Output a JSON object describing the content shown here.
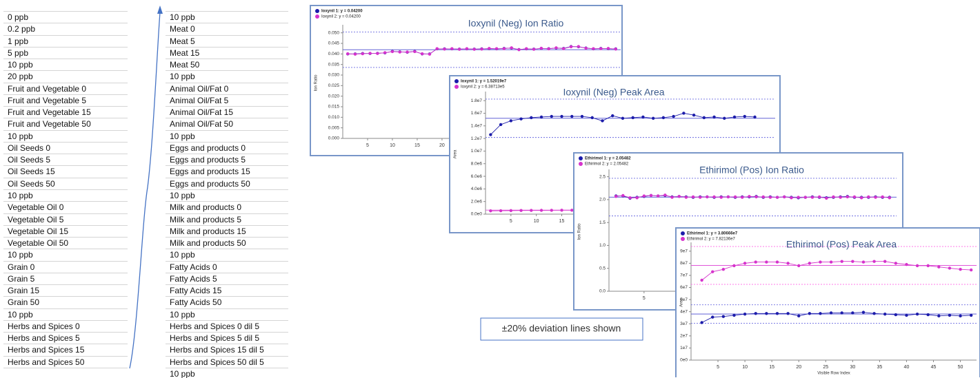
{
  "tables": [
    {
      "rows": [
        "0 ppb",
        "0.2 ppb",
        "1 ppb",
        "5 ppb",
        "10 ppb",
        "20 ppb",
        "Fruit and Vegetable 0",
        "Fruit and Vegetable 5",
        "Fruit and Vegetable 15",
        "Fruit and Vegetable 50",
        "10 ppb",
        "Oil Seeds 0",
        "Oil Seeds 5",
        "Oil Seeds 15",
        "Oil Seeds 50",
        "10 ppb",
        "Vegetable Oil 0",
        "Vegetable Oil 5",
        "Vegetable Oil 15",
        "Vegetable Oil 50",
        "10 ppb",
        "Grain 0",
        "Grain 5",
        "Grain 15",
        "Grain 50",
        "10 ppb",
        "Herbs and Spices 0",
        "Herbs and Spices 5",
        "Herbs and Spices 15",
        "Herbs and Spices 50"
      ]
    },
    {
      "rows": [
        "10 ppb",
        "Meat 0",
        "Meat 5",
        "Meat 15",
        "Meat 50",
        "10 ppb",
        "Animal Oil/Fat 0",
        "Animal Oil/Fat 5",
        "Animal Oil/Fat 15",
        "Animal Oil/Fat 50",
        "10 ppb",
        "Eggs and products 0",
        "Eggs and products 5",
        "Eggs and products 15",
        "Eggs and products 50",
        "10 ppb",
        "Milk and products 0",
        "Milk and products 5",
        "Milk and products 15",
        "Milk and products 50",
        "10 ppb",
        "Fatty Acids 0",
        "Fatty Acids 5",
        "Fatty Acids 15",
        "Fatty Acids 50",
        "10 ppb",
        "Herbs and Spices 0 dil 5",
        "Herbs and Spices 5 dil 5",
        "Herbs and Spices 15 dil 5",
        "Herbs and Spices 50 dil 5",
        "10 ppb"
      ]
    }
  ],
  "note": "±20% deviation lines shown",
  "chart_data": [
    {
      "type": "line",
      "title": "Ioxynil (Neg) Ion Ratio",
      "y_label": "Ion Ratio",
      "x": [
        1,
        2.5,
        4,
        5.5,
        7,
        8.5,
        10,
        11.5,
        13,
        14.5,
        16,
        17.5,
        19,
        20.5,
        22,
        23.5,
        25,
        26.5,
        28,
        29.5,
        31,
        32.5,
        34,
        35.5,
        37,
        38.5,
        40,
        41.5,
        43,
        44.5,
        46,
        47.5,
        49,
        50.5,
        52,
        53.5,
        55
      ],
      "xlim": [
        0,
        56
      ],
      "xticks": [
        5,
        10,
        15,
        20,
        25,
        30,
        35,
        40,
        45,
        50,
        55
      ],
      "ylim": [
        0,
        0.0525
      ],
      "yticks": [
        {
          "value": 0,
          "label": "0.000"
        },
        0.005,
        {
          "value": 0.01,
          "label": "0.010"
        },
        0.015,
        {
          "value": 0.02,
          "label": "0.020"
        },
        0.025,
        {
          "value": 0.03,
          "label": "0.030"
        },
        0.035,
        {
          "value": 0.04,
          "label": "0.040"
        },
        0.045,
        {
          "value": 0.05,
          "label": "0.050"
        }
      ],
      "hlines": [
        {
          "value": 0.042,
          "color": "#4a4ad0",
          "dashed": false
        },
        {
          "value": 0.0504,
          "color": "#6a6ae0",
          "dashed": true
        },
        {
          "value": 0.0336,
          "color": "#6a6ae0",
          "dashed": true
        }
      ],
      "series": [
        {
          "name": "Ioxynil 1: y = 0.04200",
          "color": "#1c1caa",
          "values": [
            0.04,
            0.04,
            0.0402,
            0.0402,
            0.0403,
            0.0405,
            0.0412,
            0.041,
            0.0408,
            0.0412,
            0.04,
            0.04,
            0.0424,
            0.0424,
            0.0424,
            0.0423,
            0.0424,
            0.0423,
            0.0424,
            0.0425,
            0.0424,
            0.0426,
            0.0428,
            0.0421,
            0.0424,
            0.0423,
            0.0426,
            0.0425,
            0.0428,
            0.0426,
            0.0435,
            0.0434,
            0.0428,
            0.0424,
            0.0426,
            0.0425,
            0.0424
          ]
        },
        {
          "name": "Ioxynil 2: y = 0.04200",
          "color": "#d633cc",
          "values": [
            0.0401,
            0.0399,
            0.0401,
            0.0403,
            0.0402,
            0.0406,
            0.0411,
            0.0409,
            0.0409,
            0.0411,
            0.0401,
            0.0399,
            0.0425,
            0.0423,
            0.0425,
            0.0422,
            0.0425,
            0.0422,
            0.0423,
            0.0426,
            0.0425,
            0.0425,
            0.0429,
            0.042,
            0.0425,
            0.0422,
            0.0427,
            0.0424,
            0.0429,
            0.0425,
            0.0434,
            0.0435,
            0.0427,
            0.0425,
            0.0425,
            0.0426,
            0.0423
          ]
        }
      ]
    },
    {
      "type": "line",
      "title": "Ioxynil (Neg) Peak Area",
      "y_label": "Area",
      "x": [
        1,
        3,
        5,
        7,
        9,
        11,
        13,
        15,
        17,
        19,
        21,
        23,
        25,
        27,
        29,
        31,
        33,
        35,
        37,
        39,
        41,
        43,
        45,
        47,
        49,
        51,
        53
      ],
      "xlim": [
        0,
        57
      ],
      "xticks": [
        5,
        10,
        15,
        20,
        25,
        30,
        35,
        40,
        45,
        50,
        55
      ],
      "ylim": [
        0,
        19000000
      ],
      "yticks": [
        {
          "value": 0,
          "label": "0.0e0"
        },
        {
          "value": 2000000,
          "label": "2.0e6"
        },
        {
          "value": 4000000,
          "label": "4.0e6"
        },
        {
          "value": 6000000,
          "label": "6.0e6"
        },
        {
          "value": 8000000,
          "label": "8.0e6"
        },
        {
          "value": 10000000,
          "label": "1.0e7"
        },
        {
          "value": 12000000,
          "label": "1.2e7"
        },
        {
          "value": 14000000,
          "label": "1.4e7"
        },
        {
          "value": 16000000,
          "label": "1.6e7"
        },
        {
          "value": 18000000,
          "label": "1.8e7"
        }
      ],
      "hlines": [
        {
          "value": 15201900,
          "color": "#4a4ad0",
          "dashed": false
        },
        {
          "value": 18242280,
          "color": "#6a6ae0",
          "dashed": true
        },
        {
          "value": 12161520,
          "color": "#6a6ae0",
          "dashed": true
        },
        {
          "value": 638713,
          "color": "#e055d8",
          "dashed": false
        }
      ],
      "series": [
        {
          "name": "Ioxynil 1: y = 1.52019e7",
          "color": "#1c1caa",
          "values": [
            12600000,
            14200000,
            14800000,
            15100000,
            15300000,
            15400000,
            15500000,
            15500000,
            15500000,
            15500000,
            15300000,
            14800000,
            15600000,
            15200000,
            15300000,
            15400000,
            15200000,
            15300000,
            15500000,
            16000000,
            15700000,
            15300000,
            15400000,
            15200000,
            15400000,
            15500000,
            15400000
          ]
        },
        {
          "name": "Ioxynil 2: y = 6.38713e5",
          "color": "#d633cc",
          "values": [
            520000,
            540000,
            560000,
            580000,
            590000,
            600000,
            610000,
            620000,
            620000,
            630000,
            630000,
            640000,
            640000,
            640000,
            650000,
            650000,
            650000,
            660000,
            660000,
            660000,
            660000,
            670000,
            670000,
            670000,
            680000,
            680000,
            680000
          ]
        }
      ]
    },
    {
      "type": "line",
      "title": "Ethirimol (Pos) Ion Ratio",
      "y_label": "Ion Ratio",
      "x": [
        1,
        2,
        3,
        4,
        5,
        6,
        7,
        8,
        9,
        10,
        11,
        12,
        13,
        14,
        15,
        16,
        17,
        18,
        19,
        20,
        21,
        22,
        23,
        24,
        25,
        26,
        27,
        28,
        29,
        30,
        31,
        32,
        33,
        34,
        35,
        36,
        37,
        38,
        39,
        40
      ],
      "xlim": [
        0,
        41
      ],
      "xticks": [
        5,
        10,
        15,
        20,
        25,
        30,
        35,
        40
      ],
      "ylim": [
        0,
        2.6
      ],
      "yticks": [
        {
          "value": 0,
          "label": "0.0"
        },
        0.5,
        {
          "value": 1,
          "label": "1.0"
        },
        1.5,
        {
          "value": 2,
          "label": "2.0"
        },
        2.5
      ],
      "hlines": [
        {
          "value": 2.05482,
          "color": "#4a4ad0",
          "dashed": false
        },
        {
          "value": 2.465784,
          "color": "#6a6ae0",
          "dashed": true
        },
        {
          "value": 1.643856,
          "color": "#6a6ae0",
          "dashed": true
        }
      ],
      "series": [
        {
          "name": "Ethirimol 1: y = 2.05482",
          "color": "#1c1caa",
          "values": [
            2.08,
            2.08,
            2.03,
            2.05,
            2.07,
            2.09,
            2.08,
            2.09,
            2.06,
            2.07,
            2.06,
            2.05,
            2.06,
            2.06,
            2.05,
            2.06,
            2.06,
            2.05,
            2.06,
            2.06,
            2.07,
            2.05,
            2.06,
            2.05,
            2.06,
            2.05,
            2.04,
            2.05,
            2.06,
            2.05,
            2.04,
            2.05,
            2.06,
            2.07,
            2.05,
            2.05,
            2.05,
            2.06,
            2.05,
            2.05
          ]
        },
        {
          "name": "Ethirimol 2: y = 2.05482",
          "color": "#d633cc",
          "values": [
            2.07,
            2.09,
            2.04,
            2.04,
            2.08,
            2.09,
            2.08,
            2.1,
            2.05,
            2.07,
            2.05,
            2.06,
            2.05,
            2.06,
            2.06,
            2.05,
            2.06,
            2.06,
            2.05,
            2.07,
            2.06,
            2.06,
            2.05,
            2.05,
            2.06,
            2.04,
            2.05,
            2.05,
            2.05,
            2.06,
            2.03,
            2.06,
            2.05,
            2.06,
            2.06,
            2.04,
            2.06,
            2.05,
            2.06,
            2.04
          ]
        }
      ]
    },
    {
      "type": "line",
      "title": "Ethirimol (Pos) Peak Area",
      "y_label": "Area",
      "x_label": "Visible Row Index",
      "x": [
        2,
        4,
        6,
        8,
        10,
        12,
        14,
        16,
        18,
        20,
        22,
        24,
        26,
        28,
        30,
        32,
        34,
        36,
        38,
        40,
        42,
        44,
        46,
        48,
        50,
        52
      ],
      "xlim": [
        0,
        53
      ],
      "xticks": [
        5,
        10,
        15,
        20,
        25,
        30,
        35,
        40,
        45,
        50
      ],
      "ylim": [
        0,
        95000000
      ],
      "yticks": [
        {
          "value": 0,
          "label": "0e0"
        },
        {
          "value": 10000000,
          "label": "1e7"
        },
        {
          "value": 20000000,
          "label": "2e7"
        },
        {
          "value": 30000000,
          "label": "3e7"
        },
        {
          "value": 40000000,
          "label": "4e7"
        },
        {
          "value": 50000000,
          "label": "5e7"
        },
        {
          "value": 60000000,
          "label": "6e7"
        },
        {
          "value": 70000000,
          "label": "7e7"
        },
        {
          "value": 80000000,
          "label": "8e7"
        },
        {
          "value": 90000000,
          "label": "9e7"
        }
      ],
      "hlines": [
        {
          "value": 38066600,
          "color": "#4a4ad0",
          "dashed": false
        },
        {
          "value": 45679920,
          "color": "#6a6ae0",
          "dashed": true
        },
        {
          "value": 30453280,
          "color": "#6a6ae0",
          "dashed": true
        },
        {
          "value": 78213600,
          "color": "#e055d8",
          "dashed": false
        },
        {
          "value": 93856320,
          "color": "#ff77e8",
          "dashed": true
        },
        {
          "value": 62570880,
          "color": "#ff77e8",
          "dashed": true
        }
      ],
      "series": [
        {
          "name": "Ethirimol 1: y = 3.80666e7",
          "color": "#1c1caa",
          "values": [
            31000000,
            35500000,
            36000000,
            37000000,
            38000000,
            38500000,
            38500000,
            38500000,
            38500000,
            36500000,
            38500000,
            38500000,
            39000000,
            39000000,
            39000000,
            39500000,
            38500000,
            38000000,
            37500000,
            37000000,
            38000000,
            37500000,
            36500000,
            37000000,
            36500000,
            37000000
          ]
        },
        {
          "name": "Ethirimol 2: y = 7.82136e7",
          "color": "#d633cc",
          "values": [
            66000000,
            73000000,
            75000000,
            78000000,
            80000000,
            81000000,
            81000000,
            81000000,
            80000000,
            78000000,
            80000000,
            81000000,
            81000000,
            81500000,
            81500000,
            81000000,
            81500000,
            81500000,
            80000000,
            79000000,
            78000000,
            78000000,
            77000000,
            76000000,
            75000000,
            74500000
          ]
        }
      ]
    }
  ]
}
